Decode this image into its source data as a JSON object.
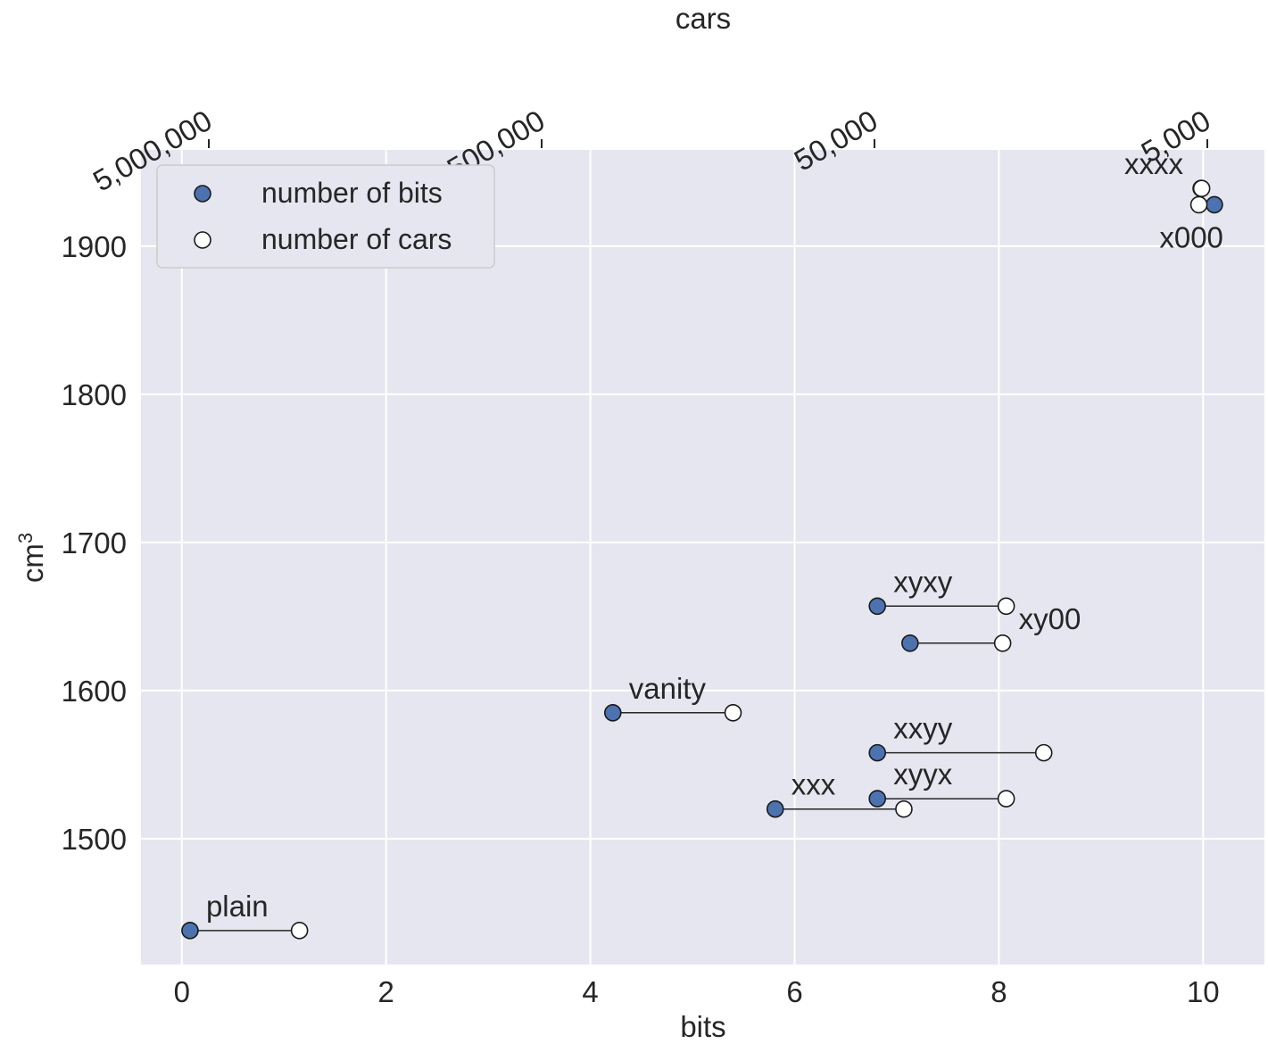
{
  "chart_data": {
    "type": "scatter",
    "xlabel": "bits",
    "ylabel": "cm",
    "ylabel_superscript": "3",
    "top_axis_label": "cars",
    "xlim": [
      -0.4,
      10.6
    ],
    "ylim": [
      1415,
      1965
    ],
    "x_ticks": [
      0,
      2,
      4,
      6,
      8,
      10
    ],
    "x_tick_labels": [
      "0",
      "2",
      "4",
      "6",
      "8",
      "10"
    ],
    "y_ticks": [
      1500,
      1600,
      1700,
      1800,
      1900
    ],
    "y_tick_labels": [
      "1500",
      "1600",
      "1700",
      "1800",
      "1900"
    ],
    "top_ticks": [
      5000000,
      500000,
      50000,
      5000
    ],
    "top_tick_labels": [
      "5,000,000",
      "500,000",
      "50,000",
      "5,000"
    ],
    "grid": true,
    "legend_position": "top-left",
    "legend": [
      {
        "label": "number of bits",
        "color": "#4c72b0"
      },
      {
        "label": "number of cars",
        "color": "#ffffff"
      }
    ],
    "bits_color": "#4c72b0",
    "cars_color": "#ffffff",
    "points": [
      {
        "label": "plain",
        "cm3": 1438,
        "bits": 0.08,
        "cars": 2670000
      },
      {
        "label": "vanity",
        "cm3": 1585,
        "bits": 4.22,
        "cars": 133000
      },
      {
        "label": "xxx",
        "cm3": 1520,
        "bits": 5.81,
        "cars": 40800
      },
      {
        "label": "xyyx",
        "cm3": 1527,
        "bits": 6.81,
        "cars": 20100
      },
      {
        "label": "xxyy",
        "cm3": 1558,
        "bits": 6.81,
        "cars": 15500
      },
      {
        "label": "xy00",
        "cm3": 1632,
        "bits": 7.13,
        "cars": 20600
      },
      {
        "label": "xyxy",
        "cm3": 1657,
        "bits": 6.81,
        "cars": 20100
      },
      {
        "label": "x000",
        "cm3": 1928,
        "bits": 10.11,
        "cars": 5300
      },
      {
        "label": "xxxx",
        "cm3": 1939,
        "bits": 9.98,
        "cars": 5200
      }
    ]
  }
}
